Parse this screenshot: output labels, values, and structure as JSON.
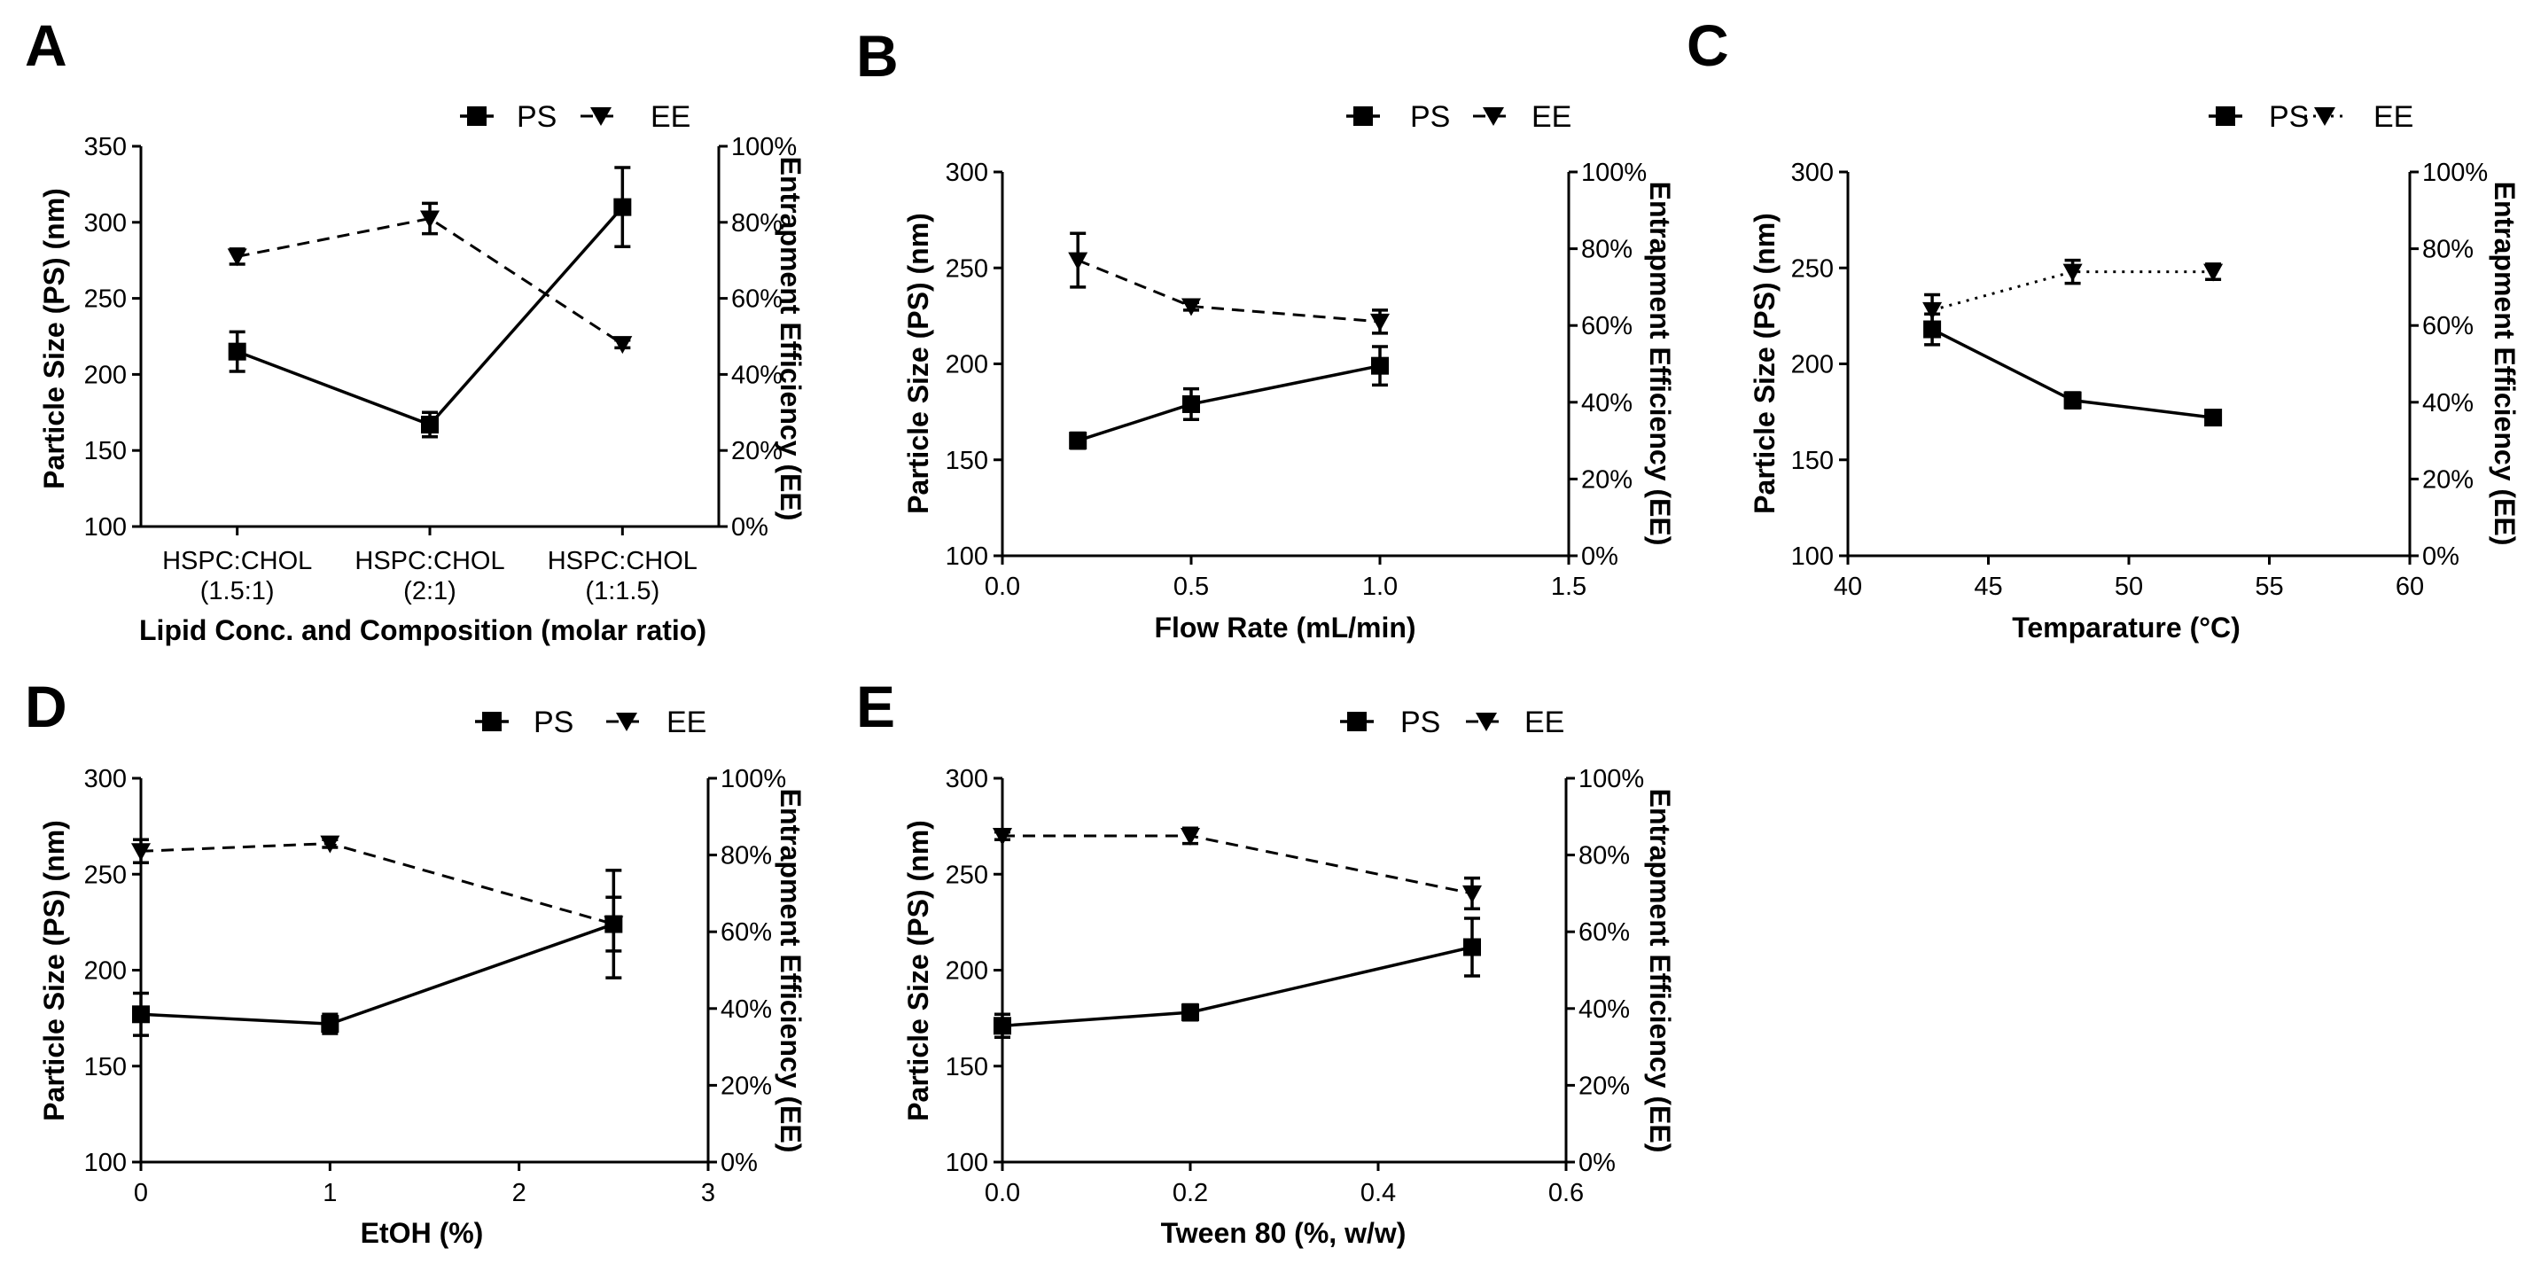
{
  "figure": {
    "legend": {
      "ps": "PS",
      "ee": "EE"
    }
  },
  "chart_data": [
    {
      "panel": "A",
      "type": "line",
      "xlabel": "Lipid Conc. and Composition (molar ratio)",
      "ylabel": "Particle Size (PS) (nm)",
      "y2label": "Entrapment Efficiency (EE)",
      "categorical": true,
      "categories": [
        [
          "HSPC:CHOL",
          "(1.5:1)"
        ],
        [
          "HSPC:CHOL",
          "(2:1)"
        ],
        [
          "HSPC:CHOL",
          "(1:1.5)"
        ]
      ],
      "x": [
        0,
        1,
        2
      ],
      "xlim": [
        -0.5,
        2.5
      ],
      "xticks": [],
      "ylim": [
        100,
        350
      ],
      "yticks": [
        100,
        150,
        200,
        250,
        300,
        350
      ],
      "y2lim": [
        0,
        100
      ],
      "y2ticks": [
        "0%",
        "20%",
        "40%",
        "60%",
        "80%",
        "100%"
      ],
      "ee_style": "dashed",
      "series": [
        {
          "name": "PS",
          "values": [
            215,
            167,
            310
          ],
          "errors": [
            13,
            8,
            26
          ]
        },
        {
          "name": "EE",
          "values": [
            71,
            81,
            48
          ],
          "errors": [
            2,
            4,
            1
          ]
        }
      ]
    },
    {
      "panel": "B",
      "type": "line",
      "xlabel": "Flow Rate (mL/min)",
      "ylabel": "Particle Size (PS) (nm)",
      "y2label": "Entrapment Efficiency (EE)",
      "categorical": false,
      "x": [
        0.2,
        0.5,
        1.0
      ],
      "xlim": [
        0,
        1.5
      ],
      "xticks": [
        "0.0",
        "0.5",
        "1.0",
        "1.5"
      ],
      "ylim": [
        100,
        300
      ],
      "yticks": [
        100,
        150,
        200,
        250,
        300
      ],
      "y2lim": [
        0,
        100
      ],
      "y2ticks": [
        "0%",
        "20%",
        "40%",
        "60%",
        "80%",
        "100%"
      ],
      "ee_style": "dashed",
      "series": [
        {
          "name": "PS",
          "values": [
            160,
            179,
            199
          ],
          "errors": [
            4,
            8,
            10
          ]
        },
        {
          "name": "EE",
          "values": [
            77,
            65,
            61
          ],
          "errors": [
            7,
            1,
            3
          ]
        }
      ]
    },
    {
      "panel": "C",
      "type": "line",
      "xlabel": "Temparature (°C)",
      "ylabel": "Particle Size (PS) (nm)",
      "y2label": "Entrapment Efficiency (EE)",
      "categorical": false,
      "x": [
        43,
        48,
        53
      ],
      "xlim": [
        40,
        60
      ],
      "xticks": [
        "40",
        "45",
        "50",
        "55",
        "60"
      ],
      "ylim": [
        100,
        300
      ],
      "yticks": [
        100,
        150,
        200,
        250,
        300
      ],
      "y2lim": [
        0,
        100
      ],
      "y2ticks": [
        "0%",
        "20%",
        "40%",
        "60%",
        "80%",
        "100%"
      ],
      "ee_style": "dotted",
      "series": [
        {
          "name": "PS",
          "values": [
            218,
            181,
            172
          ],
          "errors": [
            8,
            4,
            3
          ]
        },
        {
          "name": "EE",
          "values": [
            64,
            74,
            74
          ],
          "errors": [
            4,
            3,
            2
          ]
        }
      ]
    },
    {
      "panel": "D",
      "type": "line",
      "xlabel": "EtOH (%)",
      "ylabel": "Particle Size (PS) (nm)",
      "y2label": "Entrapment Efficiency (EE)",
      "categorical": false,
      "x": [
        0,
        1,
        2.5
      ],
      "xlim": [
        0,
        3
      ],
      "xticks": [
        "0",
        "1",
        "2",
        "3"
      ],
      "ylim": [
        100,
        300
      ],
      "yticks": [
        100,
        150,
        200,
        250,
        300
      ],
      "y2lim": [
        0,
        100
      ],
      "y2ticks": [
        "0%",
        "20%",
        "40%",
        "60%",
        "80%",
        "100%"
      ],
      "ee_style": "dashed",
      "series": [
        {
          "name": "PS",
          "values": [
            177,
            172,
            224
          ],
          "errors": [
            11,
            5,
            28
          ]
        },
        {
          "name": "EE",
          "values": [
            81,
            83,
            62
          ],
          "errors": [
            3,
            1,
            7
          ]
        }
      ]
    },
    {
      "panel": "E",
      "type": "line",
      "xlabel": "Tween 80 (%, w/w)",
      "ylabel": "Particle Size (PS) (nm)",
      "y2label": "Entrapment Efficiency (EE)",
      "categorical": false,
      "x": [
        0,
        0.2,
        0.5
      ],
      "xlim": [
        0,
        0.6
      ],
      "xticks": [
        "0.0",
        "0.2",
        "0.4",
        "0.6"
      ],
      "ylim": [
        100,
        300
      ],
      "yticks": [
        100,
        150,
        200,
        250,
        300
      ],
      "y2lim": [
        0,
        100
      ],
      "y2ticks": [
        "0%",
        "20%",
        "40%",
        "60%",
        "80%",
        "100%"
      ],
      "ee_style": "dashed",
      "series": [
        {
          "name": "PS",
          "values": [
            171,
            178,
            212
          ],
          "errors": [
            6,
            4,
            15
          ]
        },
        {
          "name": "EE",
          "values": [
            85,
            85,
            70
          ],
          "errors": [
            1,
            2,
            4
          ]
        }
      ]
    }
  ]
}
